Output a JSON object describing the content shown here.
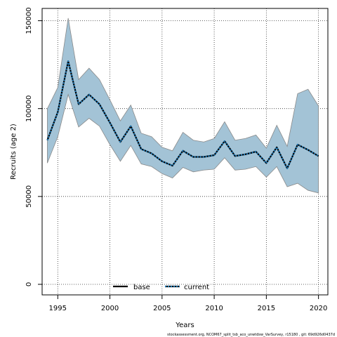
{
  "chart_data": {
    "type": "line",
    "xlabel": "Years",
    "ylabel": "Recruits (age 2)",
    "xlim": [
      1993.5,
      2020.9
    ],
    "ylim": [
      -6000,
      157000
    ],
    "x_ticks": [
      1995,
      2000,
      2005,
      2010,
      2015,
      2020
    ],
    "y_ticks": [
      0,
      50000,
      100000,
      150000
    ],
    "x_tick_labels": [
      "1995",
      "2000",
      "2005",
      "2010",
      "2015",
      "2020"
    ],
    "y_tick_labels": [
      "0",
      "50000",
      "100000",
      "150000"
    ],
    "grid": true,
    "legend_position": "bottom-center",
    "x": [
      1994,
      1995,
      1996,
      1997,
      1998,
      1999,
      2000,
      2001,
      2002,
      2003,
      2004,
      2005,
      2006,
      2007,
      2008,
      2009,
      2010,
      2011,
      2012,
      2013,
      2014,
      2015,
      2016,
      2017,
      2018,
      2019,
      2020
    ],
    "band": {
      "lower": [
        69000,
        84000,
        108000,
        89500,
        94500,
        90000,
        79500,
        70000,
        79000,
        68500,
        67000,
        63000,
        60500,
        66500,
        64000,
        65000,
        65500,
        72000,
        65000,
        65500,
        67000,
        61000,
        67000,
        55500,
        57500,
        53500,
        52000
      ],
      "upper": [
        100000,
        112000,
        151500,
        116500,
        123000,
        116500,
        105000,
        93000,
        102000,
        86000,
        84000,
        78000,
        76000,
        86500,
        82000,
        81000,
        83000,
        92500,
        82000,
        83000,
        85000,
        77500,
        90500,
        78500,
        108500,
        111000,
        101500
      ]
    },
    "series": [
      {
        "name": "base",
        "values": [
          82000,
          98000,
          127000,
          102500,
          108000,
          102500,
          92000,
          81000,
          90000,
          77000,
          74500,
          70000,
          67500,
          76000,
          72500,
          72500,
          73500,
          81500,
          73000,
          74000,
          75500,
          69000,
          78000,
          66000,
          79500,
          76500,
          73000
        ]
      },
      {
        "name": "current",
        "values": [
          82000,
          98000,
          127000,
          102500,
          108000,
          102500,
          92000,
          81000,
          90000,
          77000,
          74500,
          70000,
          67500,
          76000,
          72500,
          72500,
          73500,
          81500,
          73000,
          74000,
          75500,
          69000,
          78000,
          66000,
          79500,
          76500,
          73000
        ]
      }
    ],
    "colors": {
      "band_fill": "#a3c3d6",
      "band_edge": "#8a8a8a",
      "base": "#000000",
      "current": "#1f78b4",
      "grid": "#333333"
    }
  },
  "footer_text": "stockassessment.org, NCOM67_split_tsb_aco_unwtdsw_VarSurvey, r15180 , git: 69d926d0437d"
}
